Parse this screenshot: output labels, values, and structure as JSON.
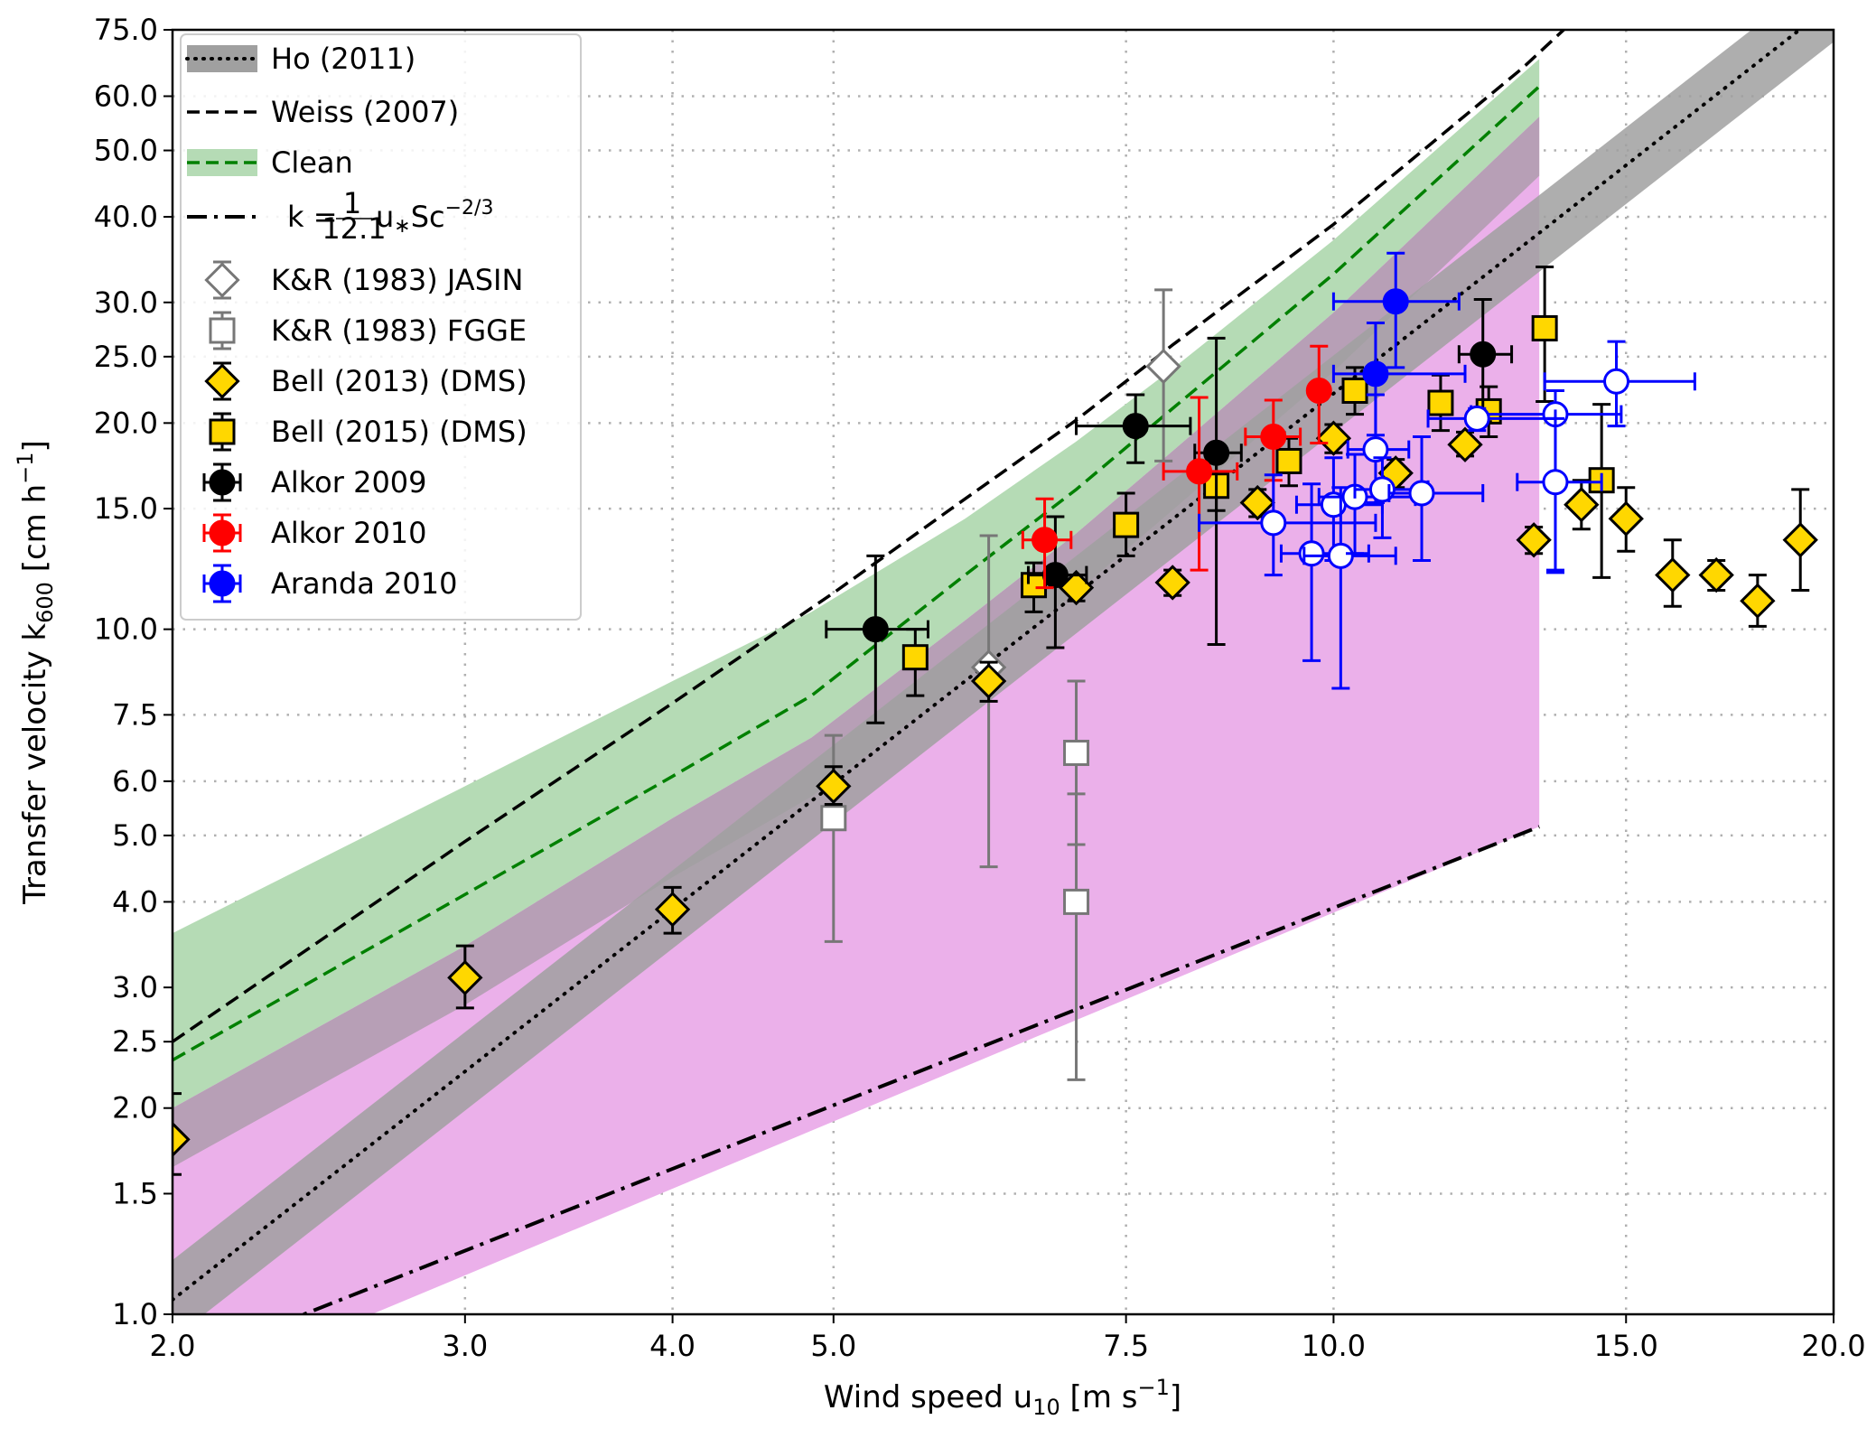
{
  "chart_data": {
    "type": "scatter",
    "title": "",
    "xlabel": "Wind speed u10 [m s^-1]",
    "xlabel_parts": {
      "main": "Wind speed u",
      "sub": "10",
      "unit": " [m s",
      "sup": "−1",
      "close": "]"
    },
    "ylabel": "Transfer velocity k600 [cm h^-1]",
    "ylabel_parts": {
      "main": "Transfer velocity k",
      "sub": "600",
      "unit": " [cm h",
      "sup": "−1",
      "close": "]"
    },
    "xscale": "log",
    "yscale": "log",
    "xlim": [
      2.0,
      20.0
    ],
    "ylim": [
      1.0,
      75.0
    ],
    "xticks": [
      2.0,
      3.0,
      4.0,
      5.0,
      7.5,
      10.0,
      15.0,
      20.0
    ],
    "xtick_labels": [
      "2.0",
      "3.0",
      "4.0",
      "5.0",
      "7.5",
      "10.0",
      "15.0",
      "20.0"
    ],
    "yticks": [
      1.0,
      1.5,
      2.0,
      2.5,
      3.0,
      4.0,
      5.0,
      6.0,
      7.5,
      10.0,
      15.0,
      20.0,
      25.0,
      30.0,
      40.0,
      50.0,
      60.0,
      75.0
    ],
    "ytick_labels": [
      "1.0",
      "1.5",
      "2.0",
      "2.5",
      "3.0",
      "4.0",
      "5.0",
      "6.0",
      "7.5",
      "10.0",
      "15.0",
      "20.0",
      "25.0",
      "30.0",
      "40.0",
      "50.0",
      "60.0",
      "75.0"
    ],
    "grid": true,
    "legend_position": "upper-left",
    "legend": [
      {
        "label": "Ho (2011)",
        "kind": "band-dotted"
      },
      {
        "label": "Weiss (2007)",
        "kind": "dashed"
      },
      {
        "label": "Clean",
        "kind": "band-dashed-green"
      },
      {
        "label": "k = (1/12.1) u* Sc^(-2/3)",
        "kind": "dashdot",
        "formula": {
          "k": "k",
          "eq": "=",
          "num": "1",
          "den": "12.1",
          "u": "u",
          "star": "∗",
          "sc": "Sc",
          "exp": "−2/3"
        }
      },
      {
        "label": "K&R (1983) JASIN",
        "kind": "marker",
        "series": "kr_jasin"
      },
      {
        "label": "K&R (1983) FGGE",
        "kind": "marker",
        "series": "kr_fgge"
      },
      {
        "label": "Bell (2013) (DMS)",
        "kind": "marker",
        "series": "bell2013"
      },
      {
        "label": "Bell (2015) (DMS)",
        "kind": "marker",
        "series": "bell2015"
      },
      {
        "label": "Alkor 2009",
        "kind": "marker",
        "series": "alkor2009"
      },
      {
        "label": "Alkor 2010",
        "kind": "marker",
        "series": "alkor2010"
      },
      {
        "label": "Aranda 2010",
        "kind": "marker",
        "series": "aranda2010"
      }
    ],
    "colors": {
      "ho_band": "#a0a0a0",
      "clean_band": "#b5dbb5",
      "clean_line": "#008000",
      "magenta_band": "#ebb0ea",
      "gold": "#ffd700",
      "grey_marker": "#777777",
      "red": "#ff0000",
      "blue": "#0000ff",
      "black": "#000000",
      "grid": "#b0b0b0"
    },
    "lines": {
      "ho2011": {
        "x": [
          2.0,
          20.0
        ],
        "y": [
          1.05,
          82.0
        ],
        "band_lower": [
          0.92,
          72.0
        ],
        "band_upper": [
          1.2,
          93.0
        ]
      },
      "weiss2007": {
        "x": [
          2.0,
          3.0,
          4.0,
          5.0,
          6.0,
          7.0,
          8.0,
          10.0,
          13.0,
          14.0
        ],
        "y": [
          2.5,
          4.9,
          7.8,
          11.3,
          15.5,
          20.2,
          26.0,
          39.0,
          66.0,
          78.0
        ]
      },
      "clean": {
        "x": [
          2.0,
          3.0,
          4.0,
          4.85,
          6.0,
          7.0,
          8.0,
          10.0,
          13.3
        ],
        "y": [
          2.35,
          4.1,
          6.1,
          8.0,
          12.0,
          16.0,
          21.0,
          33.0,
          62.0
        ],
        "band_upper": [
          3.6,
          5.9,
          8.4,
          10.6,
          14.5,
          18.8,
          24.0,
          37.0,
          68.0
        ],
        "band_lower": [
          2.0,
          3.45,
          5.3,
          6.95,
          10.3,
          13.8,
          18.2,
          29.0,
          56.0
        ]
      },
      "magenta_region": {
        "x_max": 13.3,
        "upper": "clean.band_lower",
        "lower_x": [
          2.0,
          13.3
        ],
        "lower_y": [
          0.85,
          5.2
        ]
      },
      "cole_formula": {
        "x": [
          2.0,
          13.3
        ],
        "y": [
          0.84,
          5.15
        ]
      }
    },
    "series": [
      {
        "key": "kr_jasin",
        "name": "K&R (1983) JASIN",
        "marker": "diamond-open",
        "color": "#777777",
        "points": [
          {
            "x": 6.2,
            "y": 8.8,
            "ylo": 4.5,
            "yhi": 13.7
          },
          {
            "x": 7.9,
            "y": 24.2,
            "ylo": 17.6,
            "yhi": 31.3
          }
        ]
      },
      {
        "key": "kr_fgge",
        "name": "K&R (1983) FGGE",
        "marker": "square-open",
        "color": "#777777",
        "points": [
          {
            "x": 5.0,
            "y": 5.3,
            "ylo": 3.5,
            "yhi": 7.0
          },
          {
            "x": 7.0,
            "y": 6.6,
            "ylo": 4.85,
            "yhi": 8.4
          },
          {
            "x": 7.0,
            "y": 4.0,
            "ylo": 2.2,
            "yhi": 5.75
          }
        ]
      },
      {
        "key": "bell2013",
        "name": "Bell (2013) (DMS)",
        "marker": "diamond",
        "color": "#ffd700",
        "points": [
          {
            "x": 2.0,
            "y": 1.8,
            "ylo": 1.6,
            "yhi": 2.1
          },
          {
            "x": 3.0,
            "y": 3.1,
            "ylo": 2.8,
            "yhi": 3.45
          },
          {
            "x": 4.0,
            "y": 3.9,
            "ylo": 3.6,
            "yhi": 4.2
          },
          {
            "x": 5.0,
            "y": 5.9,
            "ylo": 5.55,
            "yhi": 6.3
          },
          {
            "x": 6.2,
            "y": 8.4,
            "ylo": 7.85,
            "yhi": 8.95
          },
          {
            "x": 7.0,
            "y": 11.5,
            "ylo": 11.0,
            "yhi": 12.0
          },
          {
            "x": 8.0,
            "y": 11.7,
            "ylo": 11.2,
            "yhi": 12.2
          },
          {
            "x": 9.0,
            "y": 15.3,
            "ylo": 14.6,
            "yhi": 16.0
          },
          {
            "x": 10.0,
            "y": 19.0,
            "ylo": 18.1,
            "yhi": 19.9
          },
          {
            "x": 10.9,
            "y": 16.9,
            "ylo": 16.1,
            "yhi": 17.7
          },
          {
            "x": 12.0,
            "y": 18.6,
            "ylo": 17.9,
            "yhi": 19.4
          },
          {
            "x": 13.2,
            "y": 13.5,
            "ylo": 12.9,
            "yhi": 14.1
          },
          {
            "x": 14.1,
            "y": 15.2,
            "ylo": 14.0,
            "yhi": 16.5
          },
          {
            "x": 15.0,
            "y": 14.5,
            "ylo": 13.0,
            "yhi": 16.1
          },
          {
            "x": 16.0,
            "y": 12.0,
            "ylo": 10.8,
            "yhi": 13.5
          },
          {
            "x": 17.0,
            "y": 12.0,
            "ylo": 11.4,
            "yhi": 12.6
          },
          {
            "x": 18.0,
            "y": 11.0,
            "ylo": 10.1,
            "yhi": 12.0
          },
          {
            "x": 19.1,
            "y": 13.5,
            "ylo": 11.4,
            "yhi": 16.0
          }
        ]
      },
      {
        "key": "bell2015",
        "name": "Bell (2015) (DMS)",
        "marker": "square",
        "color": "#ffd700",
        "points": [
          {
            "x": 5.6,
            "y": 9.1,
            "ylo": 8.0,
            "yhi": 10.0
          },
          {
            "x": 6.6,
            "y": 11.6,
            "ylo": 10.6,
            "yhi": 12.5
          },
          {
            "x": 7.5,
            "y": 14.2,
            "ylo": 12.8,
            "yhi": 15.8
          },
          {
            "x": 8.5,
            "y": 16.2,
            "ylo": 14.9,
            "yhi": 17.8
          },
          {
            "x": 9.4,
            "y": 17.6,
            "ylo": 16.2,
            "yhi": 19.0
          },
          {
            "x": 10.3,
            "y": 22.3,
            "ylo": 20.6,
            "yhi": 24.1
          },
          {
            "x": 11.6,
            "y": 21.4,
            "ylo": 19.5,
            "yhi": 23.5
          },
          {
            "x": 12.4,
            "y": 20.8,
            "ylo": 19.1,
            "yhi": 22.6
          },
          {
            "x": 13.4,
            "y": 27.5,
            "ylo": 21.5,
            "yhi": 33.8
          },
          {
            "x": 14.5,
            "y": 16.5,
            "ylo": 11.9,
            "yhi": 21.3
          }
        ]
      },
      {
        "key": "alkor2009",
        "name": "Alkor 2009",
        "marker": "circle",
        "color": "#000000",
        "points": [
          {
            "x": 5.3,
            "y": 10.0,
            "ylo": 7.3,
            "yhi": 12.8,
            "xlo": 4.95,
            "xhi": 5.7
          },
          {
            "x": 6.8,
            "y": 12.0,
            "ylo": 9.4,
            "yhi": 14.6,
            "xlo": 6.55,
            "xhi": 7.1
          },
          {
            "x": 7.6,
            "y": 19.8,
            "ylo": 17.5,
            "yhi": 22.0,
            "xlo": 7.0,
            "xhi": 8.2
          },
          {
            "x": 8.5,
            "y": 18.1,
            "ylo": 9.5,
            "yhi": 26.6,
            "xlo": 8.25,
            "xhi": 8.8
          },
          {
            "x": 12.3,
            "y": 25.2,
            "ylo": 20.1,
            "yhi": 30.3,
            "xlo": 11.9,
            "xhi": 12.8
          }
        ]
      },
      {
        "key": "alkor2010",
        "name": "Alkor 2010",
        "marker": "circle",
        "color": "#ff0000",
        "points": [
          {
            "x": 6.7,
            "y": 13.5,
            "ylo": 11.5,
            "yhi": 15.5,
            "xlo": 6.5,
            "xhi": 6.95
          },
          {
            "x": 8.3,
            "y": 17.0,
            "ylo": 12.2,
            "yhi": 21.8,
            "xlo": 7.9,
            "xhi": 8.75
          },
          {
            "x": 9.2,
            "y": 19.1,
            "ylo": 16.5,
            "yhi": 21.6,
            "xlo": 8.85,
            "xhi": 9.55
          },
          {
            "x": 9.8,
            "y": 22.3,
            "ylo": 18.7,
            "yhi": 25.9,
            "xlo": 9.7,
            "xhi": 9.9
          }
        ]
      },
      {
        "key": "aranda2010",
        "name": "Aranda 2010",
        "marker": "circle",
        "color": "#0000ff",
        "points": [
          {
            "x": 10.9,
            "y": 30.1,
            "ylo": 24.1,
            "yhi": 35.4,
            "xlo": 10.0,
            "xhi": 11.9,
            "filled": true
          },
          {
            "x": 10.6,
            "y": 23.6,
            "ylo": 19.2,
            "yhi": 28.0,
            "xlo": 10.0,
            "xhi": 12.0,
            "filled": true
          },
          {
            "x": 9.2,
            "y": 14.3,
            "ylo": 12.0,
            "yhi": 16.8,
            "xlo": 8.3,
            "xhi": 10.6,
            "filled": false
          },
          {
            "x": 9.7,
            "y": 12.9,
            "ylo": 9.0,
            "yhi": 16.3,
            "xlo": 9.3,
            "xhi": 10.5,
            "filled": false
          },
          {
            "x": 10.0,
            "y": 15.2,
            "ylo": 12.6,
            "yhi": 17.8,
            "xlo": 9.5,
            "xhi": 10.7,
            "filled": false
          },
          {
            "x": 10.1,
            "y": 12.8,
            "ylo": 8.2,
            "yhi": 16.1,
            "xlo": 9.6,
            "xhi": 10.9,
            "filled": false
          },
          {
            "x": 10.3,
            "y": 15.6,
            "ylo": 12.9,
            "yhi": 18.0,
            "xlo": 9.8,
            "xhi": 11.2,
            "filled": false
          },
          {
            "x": 10.6,
            "y": 18.3,
            "ylo": 15.3,
            "yhi": 22.0,
            "xlo": 10.2,
            "xhi": 11.1,
            "filled": false
          },
          {
            "x": 10.7,
            "y": 16.0,
            "ylo": 13.6,
            "yhi": 17.8,
            "xlo": 10.3,
            "xhi": 11.4,
            "filled": false
          },
          {
            "x": 11.3,
            "y": 15.8,
            "ylo": 12.6,
            "yhi": 19.1,
            "xlo": 10.8,
            "xhi": 12.3,
            "filled": false
          },
          {
            "x": 13.6,
            "y": 20.6,
            "ylo": 12.1,
            "yhi": 22.3,
            "xlo": 12.1,
            "xhi": 14.9,
            "filled": false
          },
          {
            "x": 13.6,
            "y": 16.4,
            "ylo": 12.2,
            "yhi": 20.3,
            "xlo": 12.9,
            "xhi": 14.5,
            "filled": false
          },
          {
            "x": 14.8,
            "y": 23.0,
            "ylo": 19.8,
            "yhi": 26.3,
            "xlo": 13.4,
            "xhi": 16.5,
            "filled": false
          },
          {
            "x": 12.2,
            "y": 20.3,
            "ylo": 19.5,
            "yhi": 21.0,
            "xlo": 11.4,
            "xhi": 13.6,
            "filled": false
          }
        ]
      }
    ]
  }
}
